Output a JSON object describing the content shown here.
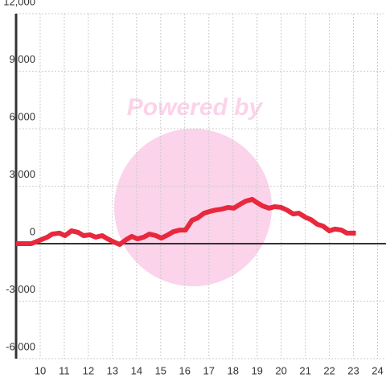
{
  "chart_data": {
    "type": "line",
    "watermark": "Powered by",
    "x": [
      9,
      9.63,
      9.97,
      10.3,
      10.5,
      10.8,
      11.03,
      11.3,
      11.57,
      11.8,
      12.07,
      12.3,
      12.57,
      12.8,
      13.07,
      13.3,
      13.57,
      13.8,
      14.03,
      14.3,
      14.53,
      14.8,
      15.03,
      15.3,
      15.53,
      15.8,
      16.03,
      16.3,
      16.53,
      16.8,
      17.03,
      17.3,
      17.53,
      17.8,
      18.03,
      18.3,
      18.53,
      18.8,
      19.0,
      19.23,
      19.5,
      19.73,
      20.0,
      20.23,
      20.5,
      20.73,
      21.0,
      21.23,
      21.5,
      21.73,
      22.0,
      22.23,
      22.5,
      22.73,
      23.1
    ],
    "series": [
      {
        "color": "#e8283c",
        "values": [
          0,
          0,
          170,
          340,
          500,
          550,
          420,
          670,
          590,
          420,
          460,
          340,
          420,
          250,
          80,
          -40,
          210,
          380,
          250,
          340,
          500,
          420,
          290,
          460,
          630,
          710,
          710,
          1220,
          1340,
          1590,
          1680,
          1760,
          1800,
          1890,
          1850,
          2060,
          2220,
          2310,
          2140,
          1970,
          1850,
          1930,
          1890,
          1760,
          1550,
          1590,
          1380,
          1260,
          1010,
          920,
          670,
          760,
          710,
          550,
          550
        ]
      }
    ],
    "xlim": [
      9,
      24.35
    ],
    "xticks": [
      10,
      11,
      12,
      13,
      14,
      15,
      16,
      17,
      18,
      19,
      20,
      21,
      22,
      23,
      24
    ],
    "ylim": [
      -6000,
      12000
    ],
    "yticks": [
      {
        "value": -6000,
        "label": "-6,000"
      },
      {
        "value": -3000,
        "label": "-3,000"
      },
      0,
      {
        "value": 3000,
        "label": "3,000"
      },
      {
        "value": 6000,
        "label": "6,000"
      },
      {
        "value": 9000,
        "label": "9,000"
      },
      {
        "value": 12000,
        "label": "12,000"
      }
    ],
    "grid": true
  }
}
